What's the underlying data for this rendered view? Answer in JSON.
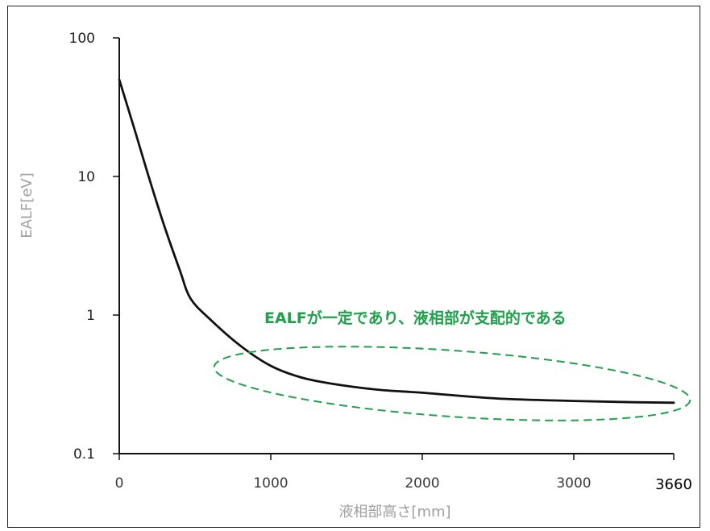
{
  "chart_data": {
    "type": "line",
    "xlabel": "液相部高さ[mm]",
    "ylabel": "EALF[eV]",
    "y_scale": "log",
    "xlim": [
      0,
      3660
    ],
    "ylim": [
      0.1,
      100
    ],
    "x_ticks": [
      "0",
      "1000",
      "2000",
      "3000",
      "3660"
    ],
    "y_ticks": [
      "100",
      "10",
      "1",
      "0.1"
    ],
    "y_tick_values": [
      100,
      10,
      1,
      0.1
    ],
    "grid": false,
    "line_color": "#111111",
    "series": [
      {
        "x": [
          0,
          100,
          200,
          300,
          400,
          470,
          600,
          800,
          1000,
          1200,
          1400,
          1700,
          2000,
          2500,
          3000,
          3400,
          3660
        ],
        "y": [
          50,
          22,
          9.5,
          4.3,
          2.1,
          1.32,
          0.93,
          0.6,
          0.43,
          0.355,
          0.32,
          0.29,
          0.275,
          0.25,
          0.24,
          0.235,
          0.233
        ]
      }
    ],
    "annotation": {
      "text": "EALFが一定であり、液相部が支配的である",
      "color": "#1fa04a"
    }
  }
}
